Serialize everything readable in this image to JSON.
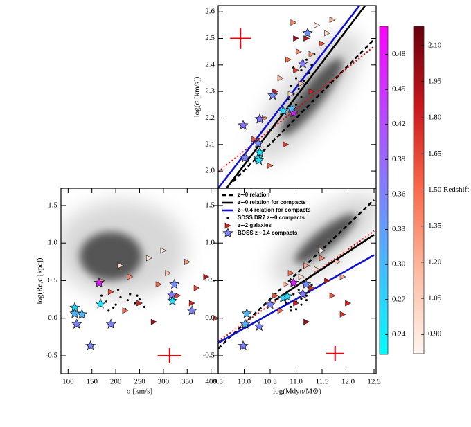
{
  "chart_data": [
    {
      "type": "scatter",
      "ylabel": "log(σ [km/s])",
      "xlim": [
        9.5,
        12.54
      ],
      "ylim": [
        1.935,
        2.624
      ],
      "yticks": [
        {
          "value": 2,
          "label": "2.0"
        },
        2.1,
        2.2,
        2.3,
        2.4,
        2.5,
        2.6
      ],
      "lines": [
        {
          "color": "#000000",
          "dash": "dashed",
          "x": [
            9.79,
            12.5
          ],
          "y": [
            1.961,
            2.496
          ]
        },
        {
          "color": "#e8000b",
          "dash": "dotted",
          "x": [
            9.5,
            12.5
          ],
          "y": [
            1.997,
            2.47
          ]
        },
        {
          "color": "#000000",
          "dash": "solid",
          "x": [
            9.66,
            12.33
          ],
          "y": [
            1.935,
            2.624
          ]
        },
        {
          "color": "#1010d0",
          "dash": "solid",
          "x": [
            9.5,
            12.22
          ],
          "y": [
            1.935,
            2.624
          ]
        }
      ],
      "series": [
        {
          "marker": "dot",
          "color": "#000000",
          "x": [
            10.85,
            10.9,
            10.95,
            11.0,
            11.05,
            11.1,
            11.15,
            11.2,
            11.25,
            11.3,
            11.35,
            11.0,
            11.1,
            11.2,
            10.95
          ],
          "y": [
            2.27,
            2.32,
            2.29,
            2.35,
            2.31,
            2.38,
            2.34,
            2.42,
            2.37,
            2.4,
            2.44,
            2.25,
            2.28,
            2.33,
            2.39
          ]
        },
        {
          "marker": "triangle",
          "x": [
            10.2,
            10.4,
            10.6,
            10.7,
            10.85,
            10.9,
            11.0,
            11.05,
            11.1,
            11.2,
            11.3,
            11.4,
            11.5,
            11.6,
            11.7,
            11.0,
            10.8,
            10.5,
            11.3,
            10.95
          ],
          "y": [
            2.12,
            2.2,
            2.3,
            2.35,
            2.42,
            2.29,
            2.38,
            2.45,
            2.33,
            2.5,
            2.44,
            2.55,
            2.48,
            2.52,
            2.57,
            2.5,
            2.1,
            2.02,
            2.3,
            2.56
          ],
          "z": [
            1.6,
            1.3,
            1.8,
            1.2,
            1.5,
            0.95,
            1.7,
            1.4,
            1.1,
            1.9,
            1.3,
            0.9,
            1.6,
            1.0,
            1.2,
            2.0,
            1.7,
            1.5,
            1.8,
            1.4
          ]
        },
        {
          "marker": "star",
          "x": [
            9.98,
            10.3,
            10.55,
            10.75,
            10.95,
            11.13,
            11.22,
            10.27,
            10.27,
            10.3,
            10.28,
            10.02,
            10.91
          ],
          "y": [
            2.172,
            2.196,
            2.285,
            2.227,
            2.22,
            2.405,
            2.52,
            2.104,
            2.05,
            2.07,
            2.04,
            2.05,
            2.235
          ],
          "z": [
            0.38,
            0.37,
            0.36,
            0.27,
            0.47,
            0.37,
            0.34,
            0.35,
            0.27,
            0.25,
            0.26,
            0.36,
            0.3
          ]
        }
      ],
      "typical_error": {
        "x": 9.93,
        "y": 2.5,
        "xerr": 0.2,
        "yerr": 0.04
      }
    },
    {
      "type": "scatter",
      "xlabel": "σ [km/s]",
      "ylabel": "log(Re,c [kpc])",
      "xlim": [
        85,
        415
      ],
      "ylim": [
        -0.74,
        1.73
      ],
      "xticks": [
        100,
        150,
        200,
        250,
        300,
        350,
        400
      ],
      "yticks": [
        -0.5,
        {
          "value": 0,
          "label": "0.0"
        },
        0.5,
        {
          "value": 1,
          "label": "1.0"
        },
        1.5
      ],
      "series": [
        {
          "marker": "dot",
          "color": "#000000",
          "x": [
            170,
            180,
            190,
            200,
            210,
            220,
            230,
            240,
            250,
            260,
            185,
            205,
            225,
            245,
            195
          ],
          "y": [
            0.3,
            0.22,
            0.35,
            0.18,
            0.28,
            0.12,
            0.32,
            0.2,
            0.25,
            0.15,
            0.1,
            0.38,
            0.24,
            0.3,
            0.14
          ]
        },
        {
          "marker": "triangle",
          "x": [
            170,
            190,
            210,
            230,
            250,
            270,
            290,
            310,
            330,
            350,
            370,
            390,
            410,
            280,
            220,
            300,
            360
          ],
          "y": [
            0.5,
            0.35,
            0.7,
            0.55,
            0.2,
            0.8,
            0.45,
            0.6,
            0.3,
            0.75,
            0.4,
            0.55,
            0.0,
            -0.05,
            0.1,
            0.9,
            0.2
          ],
          "z": [
            1.2,
            1.6,
            1.0,
            1.4,
            1.8,
            0.95,
            1.5,
            1.1,
            1.7,
            1.3,
            1.6,
            1.9,
            1.6,
            2.0,
            1.5,
            0.9,
            1.8
          ]
        },
        {
          "marker": "star",
          "x": [
            147,
            114,
            118,
            129,
            190,
            168,
            165,
            318,
            323,
            319,
            114,
            360
          ],
          "y": [
            -0.37,
            0.14,
            -0.08,
            0.05,
            -0.08,
            0.19,
            0.47,
            0.31,
            0.45,
            0.23,
            0.06,
            0.1
          ],
          "z": [
            0.36,
            0.26,
            0.36,
            0.3,
            0.36,
            0.25,
            0.47,
            0.37,
            0.35,
            0.26,
            0.3,
            0.36
          ]
        }
      ],
      "typical_error": {
        "x": 313,
        "y": -0.5,
        "xerr": 25,
        "yerr": 0.1
      }
    },
    {
      "type": "scatter",
      "xlabel": "log(Mdyn/M⊙)",
      "xlim": [
        9.5,
        12.54
      ],
      "ylim": [
        -0.74,
        1.73
      ],
      "xticks": [
        9.5,
        {
          "value": 10,
          "label": "10.0"
        },
        10.5,
        {
          "value": 11,
          "label": "11.0"
        },
        11.5,
        {
          "value": 12,
          "label": "12.0"
        },
        12.5
      ],
      "yticks": [
        -0.5,
        {
          "value": 0,
          "label": "0.0"
        },
        0.5,
        {
          "value": 1,
          "label": "1.0"
        },
        1.5
      ],
      "legend": "upper left",
      "lines": [
        {
          "name": "z∼0 relation",
          "color": "#000000",
          "dash": "dashed",
          "x": [
            9.5,
            12.5
          ],
          "y": [
            -0.405,
            1.575
          ]
        },
        {
          "color": "#e8000b",
          "dash": "dotted",
          "x": [
            9.5,
            12.5
          ],
          "y": [
            -0.31,
            1.16
          ]
        },
        {
          "name": "z∼0 relation for compacts",
          "color": "#000000",
          "dash": "solid",
          "x": [
            10.59,
            12.5
          ],
          "y": [
            0.24,
            1.11
          ]
        },
        {
          "name": "z∼0.4 relation for compacts",
          "color": "#1010d0",
          "dash": "solid",
          "x": [
            9.5,
            12.5
          ],
          "y": [
            -0.33,
            0.84
          ]
        }
      ],
      "series": [
        {
          "name": "SDSS DR7 z∼0 compacts",
          "marker": "dot",
          "color": "#000000",
          "x": [
            10.8,
            10.85,
            10.9,
            10.95,
            11.0,
            11.05,
            11.1,
            11.15,
            11.2,
            11.25,
            11.3,
            10.9,
            11.0,
            11.1,
            11.2
          ],
          "y": [
            0.2,
            0.28,
            0.15,
            0.32,
            0.22,
            0.38,
            0.26,
            0.42,
            0.3,
            0.36,
            0.44,
            0.1,
            0.12,
            0.18,
            0.24
          ]
        },
        {
          "name": "z∼2 galaxies",
          "marker": "triangle",
          "x": [
            10.6,
            10.8,
            10.9,
            11.0,
            11.1,
            11.2,
            11.3,
            11.4,
            11.5,
            11.6,
            11.7,
            11.8,
            11.9,
            12.0,
            11.2,
            10.7,
            11.5,
            11.9
          ],
          "y": [
            0.3,
            0.45,
            0.6,
            0.2,
            0.55,
            0.7,
            0.4,
            0.65,
            0.8,
            0.5,
            0.3,
            0.75,
            0.55,
            0.2,
            -0.05,
            0.1,
            0.9,
            0.05
          ],
          "z": [
            1.6,
            1.2,
            1.5,
            1.8,
            0.95,
            1.3,
            1.7,
            1.0,
            1.4,
            1.9,
            1.6,
            1.1,
            1.2,
            1.8,
            2.0,
            1.5,
            0.9,
            1.7
          ]
        },
        {
          "name": "BOSS z∼0.4 compacts",
          "marker": "star",
          "x": [
            9.98,
            10.29,
            10.02,
            10.05,
            10.5,
            10.75,
            10.95,
            11.13,
            11.19,
            10.83
          ],
          "y": [
            -0.37,
            -0.11,
            -0.08,
            0.06,
            0.18,
            0.27,
            0.47,
            0.32,
            0.45,
            0.29
          ],
          "z": [
            0.36,
            0.36,
            0.3,
            0.3,
            0.36,
            0.27,
            0.47,
            0.37,
            0.35,
            0.26
          ]
        }
      ],
      "typical_error": {
        "x": 11.75,
        "y": -0.47,
        "xerr": 0.17,
        "yerr": 0.1
      }
    },
    {
      "type": "colorbar",
      "colors": [
        "#00ffff",
        "#ff00ff"
      ],
      "lim": [
        0.223,
        0.504
      ],
      "ticks": [
        0.24,
        0.27,
        {
          "value": 0.3,
          "label": "0.30"
        },
        0.33,
        0.36,
        0.39,
        0.42,
        0.45,
        0.48
      ]
    },
    {
      "type": "colorbar",
      "label": "Redshift",
      "colors": [
        "#fff5f0",
        "#fcbba1",
        "#fb6a4a",
        "#cb181d",
        "#67000d"
      ],
      "lim": [
        0.82,
        2.18
      ],
      "ticks": [
        {
          "value": 0.9,
          "label": "0.90"
        },
        1.05,
        {
          "value": 1.2,
          "label": "1.20"
        },
        1.35,
        {
          "value": 1.5,
          "label": "1.50"
        },
        1.65,
        {
          "value": 1.8,
          "label": "1.80"
        },
        1.95,
        {
          "value": 2.1,
          "label": "2.10"
        }
      ]
    }
  ]
}
